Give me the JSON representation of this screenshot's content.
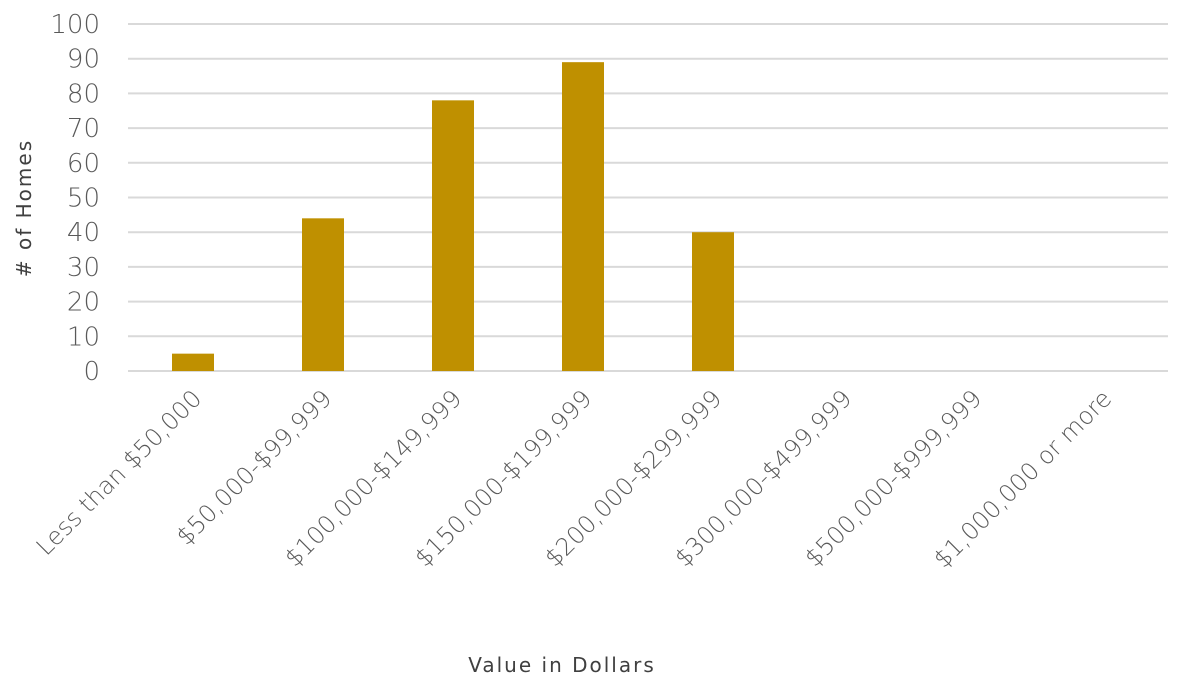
{
  "chart_data": {
    "type": "bar",
    "title": "",
    "xlabel": "Value in Dollars",
    "ylabel": "# of Homes",
    "categories": [
      "Less than $50,000",
      "$50,000-$99,999",
      "$100,000-$149,999",
      "$150,000-$199,999",
      "$200,000-$299,999",
      "$300,000-$499,999",
      "$500,000-$999,999",
      "$1,000,000 or more"
    ],
    "values": [
      5,
      44,
      78,
      89,
      40,
      0,
      0,
      0
    ],
    "ylim": [
      0,
      100
    ],
    "yticks": [
      0,
      10,
      20,
      30,
      40,
      50,
      60,
      70,
      80,
      90,
      100
    ],
    "grid": true,
    "legend": "none",
    "colors": {
      "bar": "#BF9000",
      "grid": "#D9D9D9",
      "tick_text": "#595959",
      "axis_title": "#404040"
    }
  }
}
